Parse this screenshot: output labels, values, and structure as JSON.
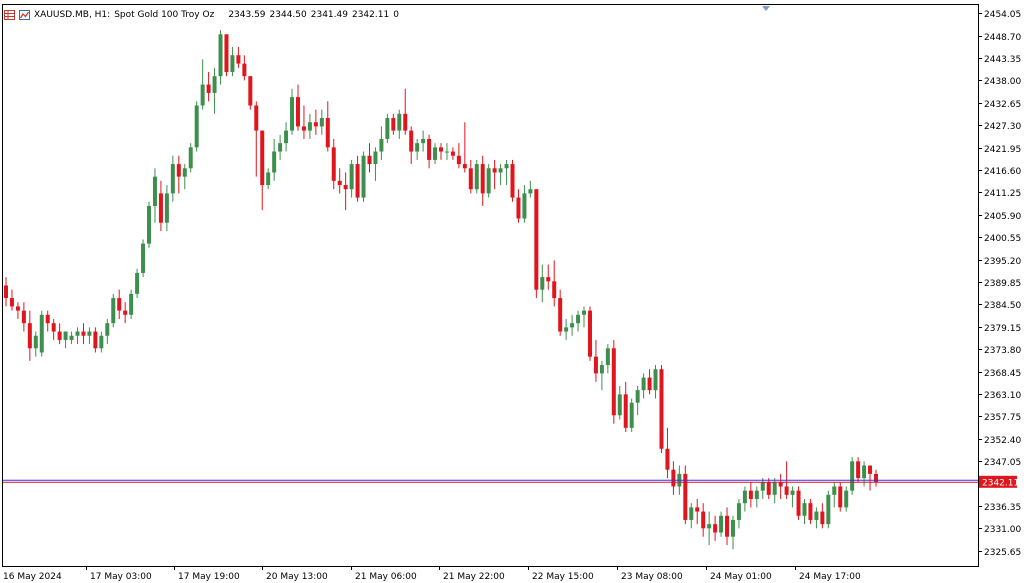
{
  "header": {
    "symbol": "XAUUSD.MB, H1:",
    "description": "Spot Gold 100 Troy Oz",
    "open": "2343.59",
    "high": "2344.50",
    "low": "2341.49",
    "close": "2342.11",
    "volume": "0",
    "icons": [
      "grid-icon",
      "chart-icon"
    ]
  },
  "colors": {
    "up": "#3e8f4d",
    "down": "#e0151d",
    "background": "#ffffff",
    "axis": "#000000",
    "last_price_bg": "#e0151d",
    "last_price_line": "#e0151d",
    "ask_line": "#3b2ff5"
  },
  "chart_data": {
    "type": "candlestick",
    "symbol": "XAUUSD.MB",
    "timeframe": "H1",
    "ylim": [
      2322.0,
      2456.0
    ],
    "y_ticks": [
      "2454.05",
      "2448.70",
      "2443.35",
      "2438.00",
      "2432.65",
      "2427.30",
      "2421.95",
      "2416.60",
      "2411.25",
      "2405.90",
      "2400.55",
      "2395.20",
      "2389.85",
      "2384.50",
      "2379.15",
      "2373.80",
      "2368.45",
      "2363.10",
      "2357.75",
      "2352.40",
      "2347.05",
      "2336.35",
      "2331.00",
      "2325.65"
    ],
    "x_ticks": [
      "16 May 2024",
      "17 May 03:00",
      "17 May 19:00",
      "20 May 13:00",
      "21 May 06:00",
      "21 May 22:00",
      "22 May 15:00",
      "23 May 08:00",
      "24 May 01:00",
      "24 May 17:00"
    ],
    "last_price": "2342.11",
    "ohlc": [
      [
        2389,
        2391,
        2384,
        2386
      ],
      [
        2386,
        2388,
        2383,
        2384
      ],
      [
        2384,
        2385,
        2381,
        2383
      ],
      [
        2383,
        2385,
        2378,
        2380
      ],
      [
        2380,
        2383,
        2371,
        2374
      ],
      [
        2374,
        2378,
        2372,
        2377
      ],
      [
        2373,
        2383,
        2372,
        2382
      ],
      [
        2382,
        2383,
        2378,
        2380
      ],
      [
        2380,
        2381,
        2376,
        2378
      ],
      [
        2378,
        2380,
        2375,
        2376
      ],
      [
        2376,
        2378,
        2374,
        2378
      ],
      [
        2376,
        2378,
        2375,
        2377
      ],
      [
        2377,
        2379,
        2375,
        2378
      ],
      [
        2378,
        2380,
        2375,
        2377
      ],
      [
        2377,
        2379,
        2375,
        2378
      ],
      [
        2378,
        2379,
        2373,
        2374
      ],
      [
        2374,
        2378,
        2373,
        2377
      ],
      [
        2377,
        2381,
        2375,
        2380
      ],
      [
        2380,
        2387,
        2379,
        2386
      ],
      [
        2386,
        2388,
        2381,
        2383
      ],
      [
        2383,
        2385,
        2380,
        2382
      ],
      [
        2382,
        2388,
        2381,
        2387
      ],
      [
        2387,
        2393,
        2386,
        2392
      ],
      [
        2392,
        2400,
        2391,
        2399
      ],
      [
        2399,
        2409,
        2398,
        2408
      ],
      [
        2408,
        2417,
        2404,
        2415
      ],
      [
        2411,
        2414,
        2402,
        2404
      ],
      [
        2404,
        2413,
        2402,
        2411
      ],
      [
        2411,
        2420,
        2409,
        2418
      ],
      [
        2418,
        2420,
        2411,
        2415
      ],
      [
        2415,
        2418,
        2412,
        2417
      ],
      [
        2417,
        2423,
        2416,
        2422
      ],
      [
        2422,
        2433,
        2421,
        2432
      ],
      [
        2432,
        2443,
        2431,
        2437
      ],
      [
        2437,
        2440,
        2433,
        2435
      ],
      [
        2435,
        2441,
        2430,
        2439
      ],
      [
        2439,
        2450,
        2437,
        2449
      ],
      [
        2449,
        2449,
        2439,
        2440
      ],
      [
        2440,
        2446,
        2439,
        2444
      ],
      [
        2444,
        2446,
        2441,
        2442
      ],
      [
        2442,
        2444,
        2438,
        2439
      ],
      [
        2439,
        2439,
        2431,
        2432
      ],
      [
        2432,
        2433,
        2415,
        2426
      ],
      [
        2426,
        2426,
        2407,
        2413
      ],
      [
        2413,
        2417,
        2412,
        2416
      ],
      [
        2416,
        2424,
        2414,
        2421
      ],
      [
        2421,
        2425,
        2419,
        2423
      ],
      [
        2423,
        2428,
        2421,
        2426
      ],
      [
        2426,
        2436,
        2425,
        2434
      ],
      [
        2434,
        2437,
        2426,
        2427
      ],
      [
        2427,
        2432,
        2424,
        2426
      ],
      [
        2426,
        2430,
        2424,
        2428
      ],
      [
        2428,
        2431,
        2425,
        2427
      ],
      [
        2427,
        2431,
        2425,
        2429
      ],
      [
        2429,
        2433,
        2421,
        2422
      ],
      [
        2422,
        2424,
        2412,
        2414
      ],
      [
        2414,
        2417,
        2411,
        2413
      ],
      [
        2413,
        2416,
        2407,
        2412
      ],
      [
        2412,
        2419,
        2410,
        2418
      ],
      [
        2418,
        2420,
        2409,
        2410
      ],
      [
        2410,
        2421,
        2409,
        2420
      ],
      [
        2420,
        2423,
        2416,
        2418
      ],
      [
        2418,
        2422,
        2414,
        2421
      ],
      [
        2421,
        2427,
        2419,
        2424
      ],
      [
        2424,
        2430,
        2423,
        2429
      ],
      [
        2429,
        2430,
        2425,
        2426
      ],
      [
        2426,
        2431,
        2424,
        2430
      ],
      [
        2430,
        2436,
        2425,
        2426
      ],
      [
        2426,
        2427,
        2418,
        2421
      ],
      [
        2421,
        2424,
        2419,
        2423
      ],
      [
        2423,
        2426,
        2421,
        2424
      ],
      [
        2424,
        2425,
        2417,
        2419
      ],
      [
        2419,
        2423,
        2418,
        2422
      ],
      [
        2422,
        2423,
        2419,
        2421
      ],
      [
        2421,
        2423,
        2419,
        2421
      ],
      [
        2421,
        2422,
        2419,
        2420
      ],
      [
        2420,
        2423,
        2417,
        2418
      ],
      [
        2418,
        2428,
        2416,
        2417
      ],
      [
        2417,
        2419,
        2411,
        2412
      ],
      [
        2412,
        2419,
        2411,
        2418
      ],
      [
        2418,
        2420,
        2408,
        2411
      ],
      [
        2411,
        2418,
        2410,
        2417
      ],
      [
        2417,
        2419,
        2412,
        2416
      ],
      [
        2416,
        2418,
        2413,
        2417
      ],
      [
        2417,
        2419,
        2413,
        2418
      ],
      [
        2418,
        2419,
        2409,
        2410
      ],
      [
        2410,
        2412,
        2404,
        2405
      ],
      [
        2405,
        2413,
        2404,
        2411
      ],
      [
        2411,
        2414,
        2410,
        2412
      ],
      [
        2412,
        2412,
        2386,
        2388
      ],
      [
        2388,
        2394,
        2385,
        2391
      ],
      [
        2391,
        2394,
        2388,
        2390
      ],
      [
        2390,
        2395,
        2384,
        2386
      ],
      [
        2386,
        2388,
        2377,
        2378
      ],
      [
        2378,
        2381,
        2376,
        2379
      ],
      [
        2379,
        2382,
        2377,
        2380
      ],
      [
        2380,
        2383,
        2378,
        2382
      ],
      [
        2382,
        2384,
        2379,
        2383
      ],
      [
        2383,
        2384,
        2371,
        2372
      ],
      [
        2372,
        2376,
        2366,
        2368
      ],
      [
        2368,
        2371,
        2364,
        2370
      ],
      [
        2370,
        2375,
        2368,
        2374
      ],
      [
        2374,
        2376,
        2356,
        2358
      ],
      [
        2358,
        2365,
        2357,
        2363
      ],
      [
        2363,
        2366,
        2354,
        2355
      ],
      [
        2355,
        2362,
        2354,
        2361
      ],
      [
        2361,
        2365,
        2358,
        2364
      ],
      [
        2364,
        2368,
        2362,
        2367
      ],
      [
        2367,
        2369,
        2363,
        2364
      ],
      [
        2364,
        2370,
        2362,
        2369
      ],
      [
        2369,
        2370,
        2349,
        2350
      ],
      [
        2350,
        2355,
        2343,
        2345
      ],
      [
        2345,
        2347,
        2339,
        2341
      ],
      [
        2341,
        2346,
        2339,
        2344
      ],
      [
        2344,
        2346,
        2332,
        2333
      ],
      [
        2333,
        2337,
        2331,
        2336
      ],
      [
        2336,
        2338,
        2332,
        2335
      ],
      [
        2335,
        2337,
        2329,
        2331
      ],
      [
        2331,
        2335,
        2327,
        2332
      ],
      [
        2332,
        2334,
        2328,
        2330
      ],
      [
        2330,
        2335,
        2329,
        2334
      ],
      [
        2334,
        2336,
        2327,
        2329
      ],
      [
        2329,
        2334,
        2326,
        2333
      ],
      [
        2333,
        2338,
        2331,
        2337
      ],
      [
        2337,
        2341,
        2335,
        2340
      ],
      [
        2340,
        2342,
        2336,
        2338
      ],
      [
        2338,
        2341,
        2336,
        2340
      ],
      [
        2340,
        2343,
        2338,
        2342
      ],
      [
        2342,
        2343,
        2338,
        2339
      ],
      [
        2339,
        2343,
        2337,
        2342
      ],
      [
        2342,
        2344,
        2338,
        2341
      ],
      [
        2341,
        2347,
        2338,
        2339
      ],
      [
        2339,
        2341,
        2336,
        2340
      ],
      [
        2340,
        2341,
        2333,
        2334
      ],
      [
        2334,
        2338,
        2332,
        2337
      ],
      [
        2337,
        2338,
        2332,
        2333
      ],
      [
        2333,
        2336,
        2331,
        2335
      ],
      [
        2335,
        2337,
        2331,
        2332
      ],
      [
        2332,
        2340,
        2331,
        2339
      ],
      [
        2339,
        2342,
        2336,
        2341
      ],
      [
        2341,
        2342,
        2335,
        2336
      ],
      [
        2336,
        2341,
        2335,
        2340
      ],
      [
        2340,
        2348,
        2339,
        2347
      ],
      [
        2347,
        2348,
        2342,
        2343
      ],
      [
        2343,
        2347,
        2341,
        2346
      ],
      [
        2346,
        2346,
        2340,
        2344
      ],
      [
        2344,
        2345,
        2341,
        2342
      ]
    ]
  }
}
